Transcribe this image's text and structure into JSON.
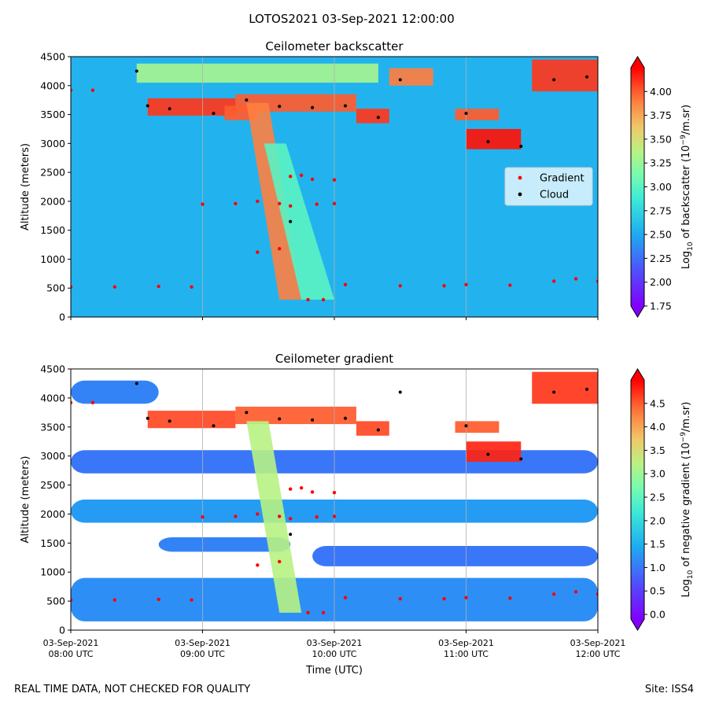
{
  "figure": {
    "suptitle": "LOTOS2021 03-Sep-2021 12:00:00",
    "footer_left": "REAL TIME DATA, NOT CHECKED FOR QUALITY",
    "footer_right": "Site: ISS4",
    "xlabel": "Time (UTC)"
  },
  "chart_data": [
    {
      "type": "heatmap",
      "title": "Ceilometer backscatter",
      "ylabel": "Altitude (meters)",
      "ylim": [
        0,
        4500
      ],
      "yticks": [
        "0",
        "500",
        "1000",
        "1500",
        "2000",
        "2500",
        "3000",
        "3500",
        "4000",
        "4500"
      ],
      "x_ticks": [
        {
          "date": "03-Sep-2021",
          "time": "08:00 UTC"
        },
        {
          "date": "03-Sep-2021",
          "time": "09:00 UTC"
        },
        {
          "date": "03-Sep-2021",
          "time": "10:00 UTC"
        },
        {
          "date": "03-Sep-2021",
          "time": "11:00 UTC"
        },
        {
          "date": "03-Sep-2021",
          "time": "12:00 UTC"
        }
      ],
      "xlim": [
        "08:00",
        "12:00"
      ],
      "grid": "vertical",
      "colorbar": {
        "label": "Log10 of backscatter (10−9/m.sr)",
        "label_parts": [
          "Log",
          "10",
          " of backscatter (10",
          "−9",
          "/m.sr)"
        ],
        "range": [
          1.75,
          4.25
        ],
        "ticks": [
          "1.75",
          "2.00",
          "2.25",
          "2.50",
          "2.75",
          "3.00",
          "3.25",
          "3.50",
          "3.75",
          "4.00"
        ],
        "colormap": "rainbow"
      },
      "legend": {
        "placement": "right",
        "entries": [
          {
            "name": "Gradient",
            "color": "#ff0000"
          },
          {
            "name": "Cloud",
            "color": "#000000"
          }
        ]
      },
      "background_value": 2.55,
      "features": [
        {
          "kind": "cloud_layer",
          "t0": "08:35",
          "t1": "09:15",
          "y0": 3480,
          "y1": 3780,
          "value": 4.1
        },
        {
          "kind": "cloud_layer",
          "t0": "09:15",
          "t1": "10:10",
          "y0": 3550,
          "y1": 3850,
          "value": 4.0
        },
        {
          "kind": "cloud_layer",
          "t0": "08:30",
          "t1": "10:20",
          "y0": 4050,
          "y1": 4380,
          "value": 3.3
        },
        {
          "kind": "cloud_layer",
          "t0": "09:10",
          "t1": "09:25",
          "y0": 3400,
          "y1": 3650,
          "value": 4.0
        },
        {
          "kind": "cloud_layer",
          "t0": "10:10",
          "t1": "10:25",
          "y0": 3350,
          "y1": 3600,
          "value": 4.1
        },
        {
          "kind": "cloud_layer",
          "t0": "10:25",
          "t1": "10:45",
          "y0": 4000,
          "y1": 4300,
          "value": 3.9
        },
        {
          "kind": "cloud_layer",
          "t0": "10:55",
          "t1": "11:15",
          "y0": 3400,
          "y1": 3600,
          "value": 4.0
        },
        {
          "kind": "cloud_layer",
          "t0": "11:00",
          "t1": "11:25",
          "y0": 2900,
          "y1": 3250,
          "value": 4.2
        },
        {
          "kind": "cloud_layer",
          "t0": "11:30",
          "t1": "12:00",
          "y0": 3900,
          "y1": 4450,
          "value": 4.1
        },
        {
          "kind": "plume",
          "t_top0": "09:20",
          "t_top1": "09:30",
          "t_bot0": "09:35",
          "t_bot1": "09:45",
          "y0": 300,
          "y1": 3700,
          "value": 3.9
        },
        {
          "kind": "plume",
          "t_top0": "09:28",
          "t_top1": "09:38",
          "t_bot0": "09:45",
          "t_bot1": "10:00",
          "y0": 300,
          "y1": 3000,
          "value": 3.0
        }
      ],
      "gradient_points": [
        {
          "t": "08:00",
          "y": 3920
        },
        {
          "t": "08:10",
          "y": 3920
        },
        {
          "t": "08:00",
          "y": 520
        },
        {
          "t": "08:20",
          "y": 520
        },
        {
          "t": "08:40",
          "y": 530
        },
        {
          "t": "08:55",
          "y": 520
        },
        {
          "t": "09:00",
          "y": 1950
        },
        {
          "t": "09:15",
          "y": 1960
        },
        {
          "t": "09:25",
          "y": 2000
        },
        {
          "t": "09:35",
          "y": 1960
        },
        {
          "t": "09:40",
          "y": 1920
        },
        {
          "t": "09:25",
          "y": 1120
        },
        {
          "t": "09:35",
          "y": 1180
        },
        {
          "t": "09:40",
          "y": 2430
        },
        {
          "t": "09:45",
          "y": 2450
        },
        {
          "t": "09:50",
          "y": 2380
        },
        {
          "t": "10:00",
          "y": 2370
        },
        {
          "t": "09:52",
          "y": 1950
        },
        {
          "t": "10:00",
          "y": 1960
        },
        {
          "t": "09:48",
          "y": 300
        },
        {
          "t": "09:55",
          "y": 300
        },
        {
          "t": "10:05",
          "y": 560
        },
        {
          "t": "10:30",
          "y": 540
        },
        {
          "t": "10:50",
          "y": 540
        },
        {
          "t": "11:00",
          "y": 560
        },
        {
          "t": "11:20",
          "y": 550
        },
        {
          "t": "11:40",
          "y": 620
        },
        {
          "t": "11:50",
          "y": 660
        },
        {
          "t": "12:00",
          "y": 620
        }
      ],
      "cloud_points": [
        {
          "t": "08:30",
          "y": 4250
        },
        {
          "t": "08:35",
          "y": 3650
        },
        {
          "t": "08:45",
          "y": 3600
        },
        {
          "t": "09:05",
          "y": 3520
        },
        {
          "t": "09:20",
          "y": 3750
        },
        {
          "t": "09:35",
          "y": 3640
        },
        {
          "t": "09:50",
          "y": 3620
        },
        {
          "t": "10:05",
          "y": 3650
        },
        {
          "t": "10:20",
          "y": 3450
        },
        {
          "t": "10:30",
          "y": 4100
        },
        {
          "t": "11:00",
          "y": 3520
        },
        {
          "t": "11:10",
          "y": 3030
        },
        {
          "t": "11:25",
          "y": 2950
        },
        {
          "t": "11:40",
          "y": 4100
        },
        {
          "t": "11:55",
          "y": 4150
        },
        {
          "t": "09:40",
          "y": 1650
        }
      ]
    },
    {
      "type": "heatmap",
      "title": "Ceilometer gradient",
      "ylabel": "Altitude (meters)",
      "ylim": [
        0,
        4500
      ],
      "yticks": [
        "0",
        "500",
        "1000",
        "1500",
        "2000",
        "2500",
        "3000",
        "3500",
        "4000",
        "4500"
      ],
      "x_ticks": [
        {
          "date": "03-Sep-2021",
          "time": "08:00 UTC"
        },
        {
          "date": "03-Sep-2021",
          "time": "09:00 UTC"
        },
        {
          "date": "03-Sep-2021",
          "time": "10:00 UTC"
        },
        {
          "date": "03-Sep-2021",
          "time": "11:00 UTC"
        },
        {
          "date": "03-Sep-2021",
          "time": "12:00 UTC"
        }
      ],
      "xlim": [
        "08:00",
        "12:00"
      ],
      "grid": "vertical",
      "colorbar": {
        "label": "Log10 of negative gradient (10−9/m.sr)",
        "label_parts": [
          "Log",
          "10",
          " of negative gradient (10",
          "−9",
          "/m.sr)"
        ],
        "range": [
          -0.1,
          5.0
        ],
        "ticks": [
          "0.0",
          "0.5",
          "1.0",
          "1.5",
          "2.0",
          "2.5",
          "3.0",
          "3.5",
          "4.0",
          "4.5"
        ],
        "colormap": "rainbow"
      },
      "bands": [
        {
          "t0": "08:00",
          "t1": "12:00",
          "y0": 150,
          "y1": 900,
          "value": 1.2
        },
        {
          "t0": "08:00",
          "t1": "12:00",
          "y0": 1850,
          "y1": 2250,
          "value": 1.3
        },
        {
          "t0": "08:00",
          "t1": "12:00",
          "y0": 2700,
          "y1": 3100,
          "value": 1.0
        },
        {
          "t0": "08:00",
          "t1": "08:40",
          "y0": 3900,
          "y1": 4300,
          "value": 1.1
        },
        {
          "t0": "09:50",
          "t1": "12:00",
          "y0": 1100,
          "y1": 1450,
          "value": 1.0
        },
        {
          "t0": "08:40",
          "t1": "09:40",
          "y0": 1350,
          "y1": 1600,
          "value": 1.1
        }
      ],
      "features": [
        {
          "kind": "cloud_layer",
          "t0": "08:35",
          "t1": "09:15",
          "y0": 3480,
          "y1": 3780,
          "value": 4.6
        },
        {
          "kind": "cloud_layer",
          "t0": "09:15",
          "t1": "10:10",
          "y0": 3550,
          "y1": 3850,
          "value": 4.5
        },
        {
          "kind": "cloud_layer",
          "t0": "10:10",
          "t1": "10:25",
          "y0": 3350,
          "y1": 3600,
          "value": 4.6
        },
        {
          "kind": "cloud_layer",
          "t0": "10:55",
          "t1": "11:15",
          "y0": 3400,
          "y1": 3600,
          "value": 4.5
        },
        {
          "kind": "cloud_layer",
          "t0": "11:00",
          "t1": "11:25",
          "y0": 2900,
          "y1": 3250,
          "value": 4.8
        },
        {
          "kind": "cloud_layer",
          "t0": "11:30",
          "t1": "12:00",
          "y0": 3900,
          "y1": 4450,
          "value": 4.7
        },
        {
          "kind": "plume",
          "t_top0": "09:20",
          "t_top1": "09:30",
          "t_bot0": "09:35",
          "t_bot1": "09:45",
          "y0": 300,
          "y1": 3600,
          "value": 3.2
        }
      ],
      "gradient_points": [
        {
          "t": "08:00",
          "y": 3920
        },
        {
          "t": "08:10",
          "y": 3920
        },
        {
          "t": "08:00",
          "y": 520
        },
        {
          "t": "08:20",
          "y": 520
        },
        {
          "t": "08:40",
          "y": 530
        },
        {
          "t": "08:55",
          "y": 520
        },
        {
          "t": "09:00",
          "y": 1950
        },
        {
          "t": "09:15",
          "y": 1960
        },
        {
          "t": "09:25",
          "y": 2000
        },
        {
          "t": "09:35",
          "y": 1960
        },
        {
          "t": "09:40",
          "y": 1920
        },
        {
          "t": "09:25",
          "y": 1120
        },
        {
          "t": "09:35",
          "y": 1180
        },
        {
          "t": "09:40",
          "y": 2430
        },
        {
          "t": "09:45",
          "y": 2450
        },
        {
          "t": "09:50",
          "y": 2380
        },
        {
          "t": "10:00",
          "y": 2370
        },
        {
          "t": "09:52",
          "y": 1950
        },
        {
          "t": "10:00",
          "y": 1960
        },
        {
          "t": "09:48",
          "y": 300
        },
        {
          "t": "09:55",
          "y": 300
        },
        {
          "t": "10:05",
          "y": 560
        },
        {
          "t": "10:30",
          "y": 540
        },
        {
          "t": "10:50",
          "y": 540
        },
        {
          "t": "11:00",
          "y": 560
        },
        {
          "t": "11:20",
          "y": 550
        },
        {
          "t": "11:40",
          "y": 620
        },
        {
          "t": "11:50",
          "y": 660
        },
        {
          "t": "12:00",
          "y": 620
        }
      ],
      "cloud_points": [
        {
          "t": "08:30",
          "y": 4250
        },
        {
          "t": "08:35",
          "y": 3650
        },
        {
          "t": "08:45",
          "y": 3600
        },
        {
          "t": "09:05",
          "y": 3520
        },
        {
          "t": "09:20",
          "y": 3750
        },
        {
          "t": "09:35",
          "y": 3640
        },
        {
          "t": "09:50",
          "y": 3620
        },
        {
          "t": "10:05",
          "y": 3650
        },
        {
          "t": "10:20",
          "y": 3450
        },
        {
          "t": "10:30",
          "y": 4100
        },
        {
          "t": "11:00",
          "y": 3520
        },
        {
          "t": "11:10",
          "y": 3030
        },
        {
          "t": "11:25",
          "y": 2950
        },
        {
          "t": "11:40",
          "y": 4100
        },
        {
          "t": "11:55",
          "y": 4150
        },
        {
          "t": "09:40",
          "y": 1650
        }
      ]
    }
  ]
}
